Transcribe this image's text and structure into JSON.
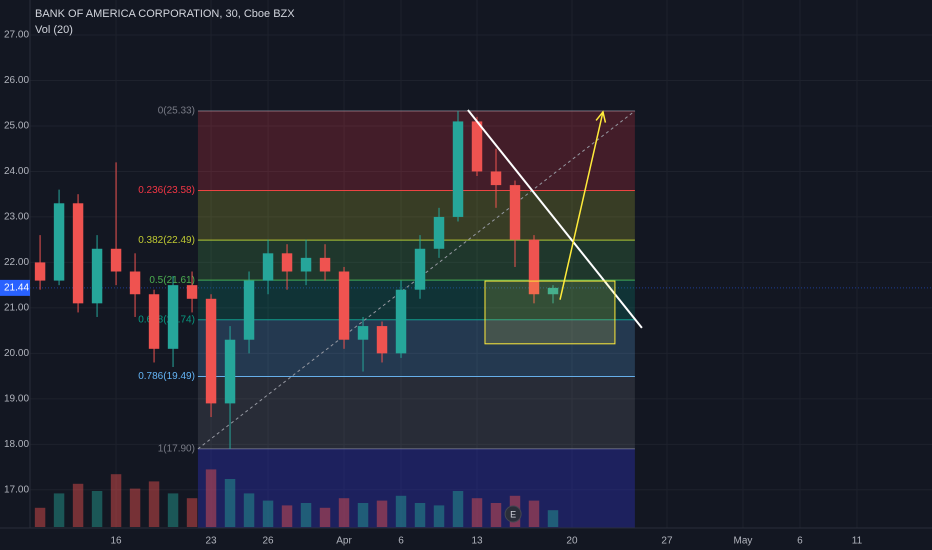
{
  "chart_data": {
    "type": "candlestick",
    "title": "BANK OF AMERICA CORPORATION, 30, Cboe BZX",
    "subtitle": "Vol (20)",
    "x": [
      -4,
      -3,
      -2,
      -1,
      0,
      1,
      2,
      3,
      4,
      5,
      6,
      7,
      8,
      9,
      10,
      11,
      12,
      13,
      14,
      15,
      16,
      17,
      18,
      19,
      20,
      21,
      22,
      23
    ],
    "candles": [
      [
        22.0,
        22.6,
        21.4,
        21.6
      ],
      [
        21.6,
        23.6,
        21.5,
        23.3
      ],
      [
        23.3,
        23.5,
        20.9,
        21.1
      ],
      [
        21.1,
        22.6,
        20.8,
        22.3
      ],
      [
        22.3,
        24.2,
        21.5,
        21.8
      ],
      [
        21.8,
        22.2,
        20.8,
        21.3
      ],
      [
        21.3,
        21.4,
        19.8,
        20.1
      ],
      [
        20.1,
        21.7,
        19.7,
        21.5
      ],
      [
        21.5,
        21.8,
        20.9,
        21.2
      ],
      [
        21.2,
        21.3,
        18.6,
        18.9
      ],
      [
        18.9,
        20.6,
        17.9,
        20.3
      ],
      [
        20.3,
        21.8,
        20.0,
        21.6
      ],
      [
        21.6,
        22.5,
        21.3,
        22.2
      ],
      [
        22.2,
        22.4,
        21.4,
        21.8
      ],
      [
        21.8,
        22.5,
        21.5,
        22.1
      ],
      [
        22.1,
        22.4,
        21.6,
        21.8
      ],
      [
        21.8,
        21.9,
        20.1,
        20.3
      ],
      [
        20.3,
        20.8,
        19.6,
        20.6
      ],
      [
        20.6,
        20.7,
        19.8,
        20.0
      ],
      [
        20.0,
        21.6,
        19.9,
        21.4
      ],
      [
        21.4,
        22.6,
        21.2,
        22.3
      ],
      [
        22.3,
        23.2,
        22.1,
        23.0
      ],
      [
        23.0,
        25.33,
        22.9,
        25.1
      ],
      [
        25.1,
        25.2,
        23.9,
        24.0
      ],
      [
        24.0,
        24.5,
        23.2,
        23.7
      ],
      [
        23.7,
        23.8,
        21.9,
        22.5
      ],
      [
        22.5,
        22.6,
        21.1,
        21.3
      ],
      [
        21.3,
        21.5,
        21.1,
        21.44
      ]
    ],
    "volume": [
      40,
      70,
      90,
      75,
      110,
      80,
      95,
      70,
      60,
      120,
      100,
      70,
      55,
      45,
      50,
      40,
      60,
      50,
      55,
      65,
      50,
      45,
      75,
      60,
      50,
      65,
      55,
      35
    ],
    "vlim": [
      0,
      250
    ],
    "up_color": "#26a69a",
    "down_color": "#ef5350",
    "xlim": [
      -4.53,
      42.95
    ],
    "xticks": [
      {
        "value": 0,
        "label": "16"
      },
      {
        "value": 5,
        "label": "23"
      },
      {
        "value": 8,
        "label": "26"
      },
      {
        "value": 12,
        "label": "Apr"
      },
      {
        "value": 15,
        "label": "6"
      },
      {
        "value": 19,
        "label": "13"
      },
      {
        "value": 24,
        "label": "20"
      },
      {
        "value": 29,
        "label": "27"
      },
      {
        "value": 33,
        "label": "May"
      },
      {
        "value": 36,
        "label": "6"
      },
      {
        "value": 39,
        "label": "11"
      }
    ],
    "ylim": [
      16.16,
      27.77
    ],
    "yticks": [
      {
        "value": 17,
        "label": "17.00"
      },
      {
        "value": 18,
        "label": "18.00"
      },
      {
        "value": 19,
        "label": "19.00"
      },
      {
        "value": 20,
        "label": "20.00"
      },
      {
        "value": 21,
        "label": "21.00"
      },
      {
        "value": 22,
        "label": "22.00"
      },
      {
        "value": 23,
        "label": "23.00"
      },
      {
        "value": 24,
        "label": "24.00"
      },
      {
        "value": 25,
        "label": "25.00"
      },
      {
        "value": 26,
        "label": "26.00"
      },
      {
        "value": 27,
        "label": "27.00"
      }
    ],
    "grid": true,
    "last_price": {
      "value": 21.44,
      "label": "21.44",
      "color": "#2962ff"
    },
    "fib": {
      "x": [
        4.31,
        27.31
      ],
      "levels": [
        {
          "price": 25.33,
          "label": "0(25.33)",
          "color": "#787b86"
        },
        {
          "price": 23.58,
          "label": "0.236(23.58)",
          "color": "#f23645"
        },
        {
          "price": 22.49,
          "label": "0.382(22.49)",
          "color": "#c0ca33"
        },
        {
          "price": 21.61,
          "label": "0.5(21.61)",
          "color": "#4caf50"
        },
        {
          "price": 20.74,
          "label": "0.618(20.74)",
          "color": "#089981"
        },
        {
          "price": 19.49,
          "label": "0.786(19.49)",
          "color": "#64b5f6"
        },
        {
          "price": 17.9,
          "label": "1(17.90)",
          "color": "#787b86"
        }
      ],
      "extension_color": "#2a2ea8"
    },
    "drawings": {
      "trend_line": {
        "color": "#ffffff",
        "points": [
          [
            18.52,
            25.35
          ],
          [
            27.68,
            20.56
          ]
        ]
      },
      "arrow": {
        "color": "#ffeb3b",
        "points": [
          [
            23.37,
            21.18
          ],
          [
            25.63,
            25.31
          ]
        ]
      },
      "box": {
        "color": "#ffeb3b",
        "x": [
          19.42,
          26.26
        ],
        "y": [
          20.21,
          21.59
        ]
      }
    },
    "earnings": {
      "label": "E",
      "x": 20.9
    }
  }
}
